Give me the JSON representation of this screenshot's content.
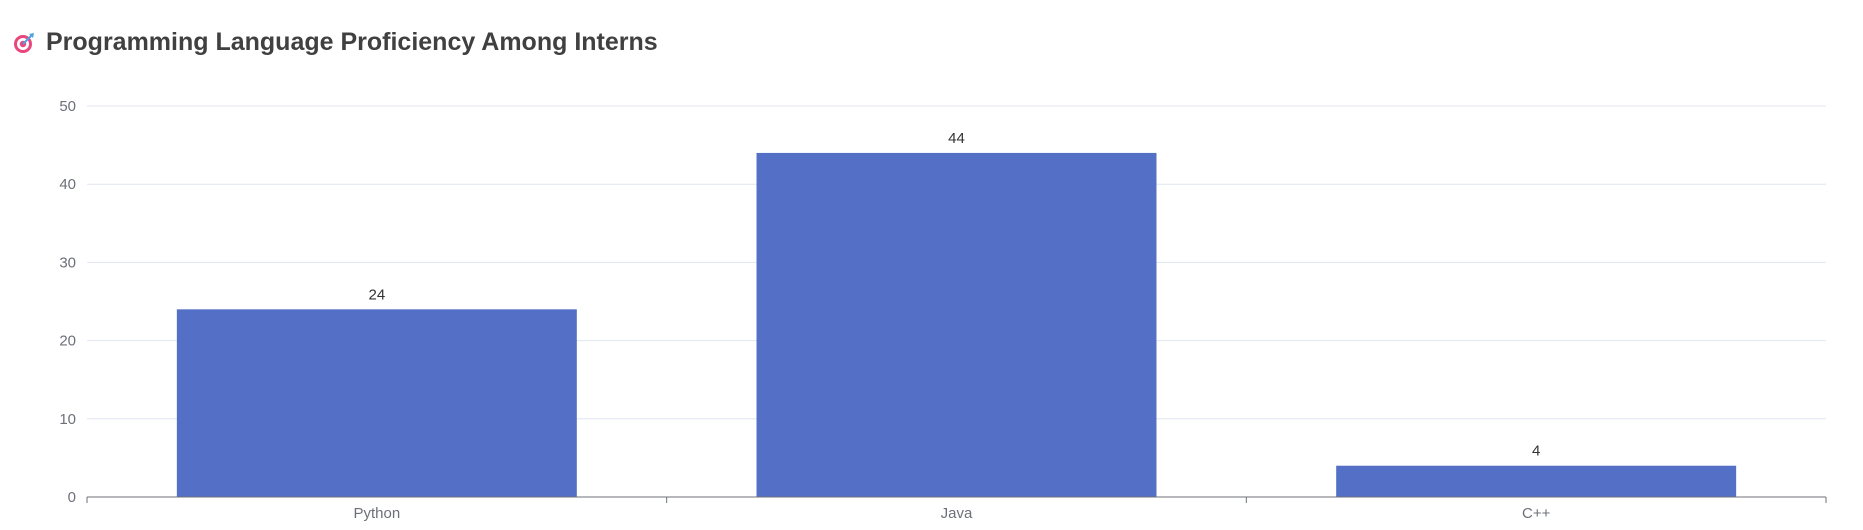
{
  "title": "Programming Language Proficiency Among Interns",
  "title_icon": "target-icon",
  "colors": {
    "bar": "#5470c6",
    "grid": "#e0e6f1",
    "axis": "#6e7079",
    "title": "#404040",
    "icon_ring": "#e8467c",
    "icon_dart": "#4fa3e0"
  },
  "chart_data": {
    "type": "bar",
    "title": "Programming Language Proficiency Among Interns",
    "categories": [
      "Python",
      "Java",
      "C++"
    ],
    "values": [
      24,
      44,
      4
    ],
    "ylim": [
      0,
      50
    ],
    "yticks": [
      0,
      10,
      20,
      30,
      40,
      50
    ],
    "xlabel": "",
    "ylabel": "",
    "grid": true,
    "data_labels": true
  }
}
